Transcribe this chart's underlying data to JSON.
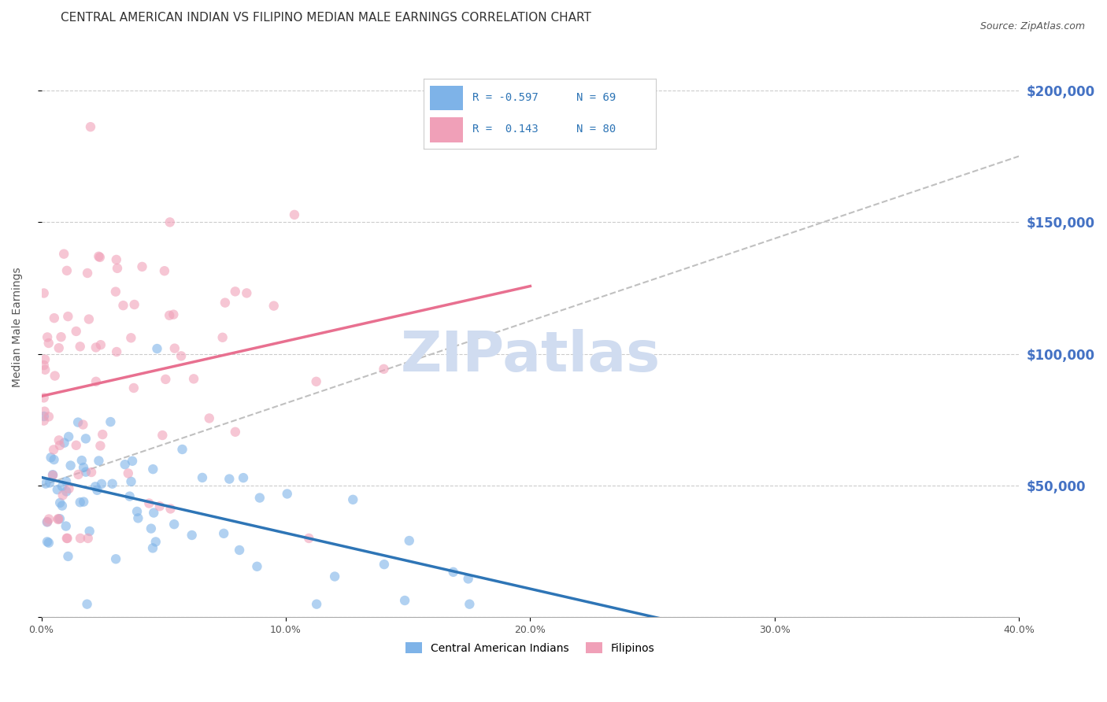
{
  "title": "CENTRAL AMERICAN INDIAN VS FILIPINO MEDIAN MALE EARNINGS CORRELATION CHART",
  "source": "Source: ZipAtlas.com",
  "xlabel": "",
  "ylabel": "Median Male Earnings",
  "xlim": [
    0,
    0.4
  ],
  "ylim": [
    0,
    220000
  ],
  "yticks": [
    0,
    50000,
    100000,
    150000,
    200000
  ],
  "ytick_labels": [
    "",
    "$50,000",
    "$100,000",
    "$150,000",
    "$200,000"
  ],
  "xticks": [
    0.0,
    0.1,
    0.2,
    0.3,
    0.4
  ],
  "xtick_labels": [
    "0.0%",
    "10.0%",
    "20.0%",
    "30.0%",
    "40.0%"
  ],
  "blue_color": "#7EB3E8",
  "pink_color": "#F0A0B8",
  "blue_line_color": "#2E75B6",
  "pink_line_color": "#E87090",
  "gray_dashed_color": "#C0C0C0",
  "watermark": "ZIPatlas",
  "watermark_color": "#D0DCF0",
  "title_fontsize": 11,
  "axis_label_fontsize": 10,
  "tick_fontsize": 9,
  "legend_fontsize": 10,
  "blue_seed": 42,
  "pink_seed": 99,
  "blue_R": -0.597,
  "blue_N": 69,
  "pink_R": 0.143,
  "pink_N": 80,
  "background_color": "#FFFFFF",
  "grid_color": "#CCCCCC",
  "right_axis_color": "#4472C4",
  "marker_size": 80,
  "marker_alpha": 0.6
}
